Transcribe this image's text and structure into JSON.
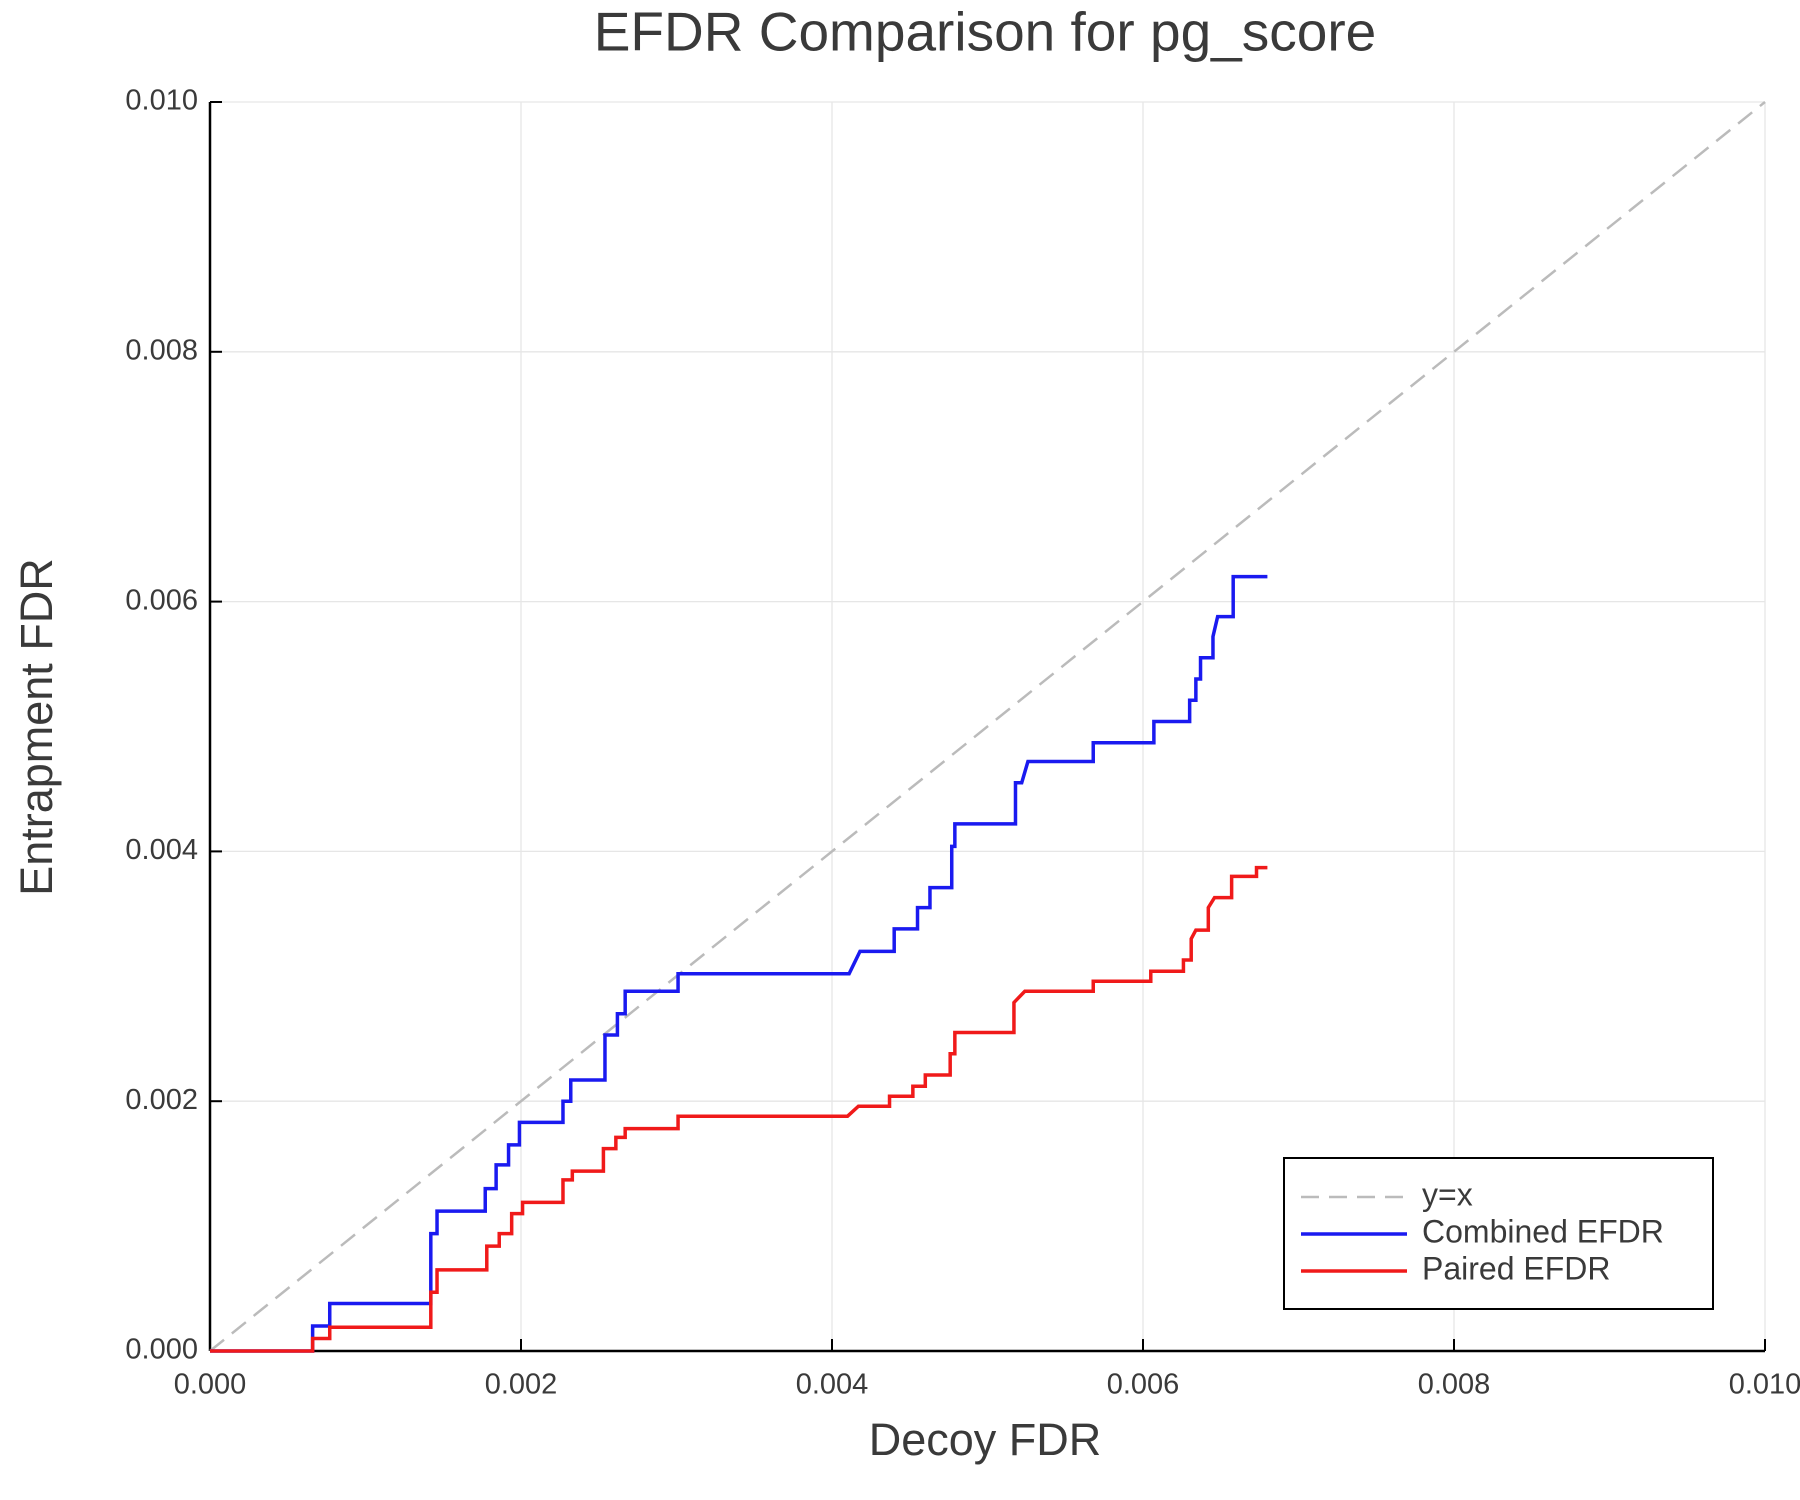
{
  "chart_data": {
    "type": "line",
    "title": "EFDR Comparison for pg_score",
    "x_label": "Decoy FDR",
    "y_label": "Entrapment FDR",
    "xlim": [
      0,
      0.01
    ],
    "ylim": [
      0,
      0.01
    ],
    "xticks": [
      {
        "value": 0,
        "label": "0.000"
      },
      {
        "value": 0.002,
        "label": "0.002"
      },
      {
        "value": 0.004,
        "label": "0.004"
      },
      {
        "value": 0.006,
        "label": "0.006"
      },
      {
        "value": 0.008,
        "label": "0.008"
      },
      {
        "value": 0.01,
        "label": "0.010"
      }
    ],
    "yticks": [
      {
        "value": 0,
        "label": "0.000"
      },
      {
        "value": 0.002,
        "label": "0.002"
      },
      {
        "value": 0.004,
        "label": "0.004"
      },
      {
        "value": 0.006,
        "label": "0.006"
      },
      {
        "value": 0.008,
        "label": "0.008"
      },
      {
        "value": 0.01,
        "label": "0.010"
      }
    ],
    "grid": true,
    "legend": "lower right",
    "series": [
      {
        "name": "y=x",
        "color": "#bbbbbb",
        "style": "dashed",
        "x": [
          0,
          0.01
        ],
        "values": [
          0,
          0.01
        ]
      },
      {
        "name": "Combined EFDR",
        "color": "#1a1af0",
        "style": "solid",
        "x": [
          0,
          0.00066,
          0.00066,
          0.00077,
          0.00077,
          0.00142,
          0.00142,
          0.00146,
          0.00146,
          0.00177,
          0.00177,
          0.00184,
          0.00184,
          0.00192,
          0.00192,
          0.00199,
          0.00199,
          0.00227,
          0.00227,
          0.00232,
          0.00232,
          0.00254,
          0.00254,
          0.00262,
          0.00262,
          0.00267,
          0.00267,
          0.00301,
          0.00301,
          0.00411,
          0.00418,
          0.0044,
          0.0044,
          0.00455,
          0.00455,
          0.00463,
          0.00463,
          0.00477,
          0.00477,
          0.00479,
          0.00479,
          0.00518,
          0.00518,
          0.00522,
          0.00526,
          0.00568,
          0.00568,
          0.00607,
          0.00607,
          0.0063,
          0.0063,
          0.00634,
          0.00634,
          0.00637,
          0.00637,
          0.00645,
          0.00645,
          0.00648,
          0.00658,
          0.00658,
          0.0068
        ],
        "values": [
          0,
          0,
          0.0002,
          0.0002,
          0.00038,
          0.00038,
          0.00094,
          0.00094,
          0.00112,
          0.00112,
          0.0013,
          0.0013,
          0.00149,
          0.00149,
          0.00165,
          0.00165,
          0.00183,
          0.00183,
          0.002,
          0.002,
          0.00217,
          0.00217,
          0.00253,
          0.00253,
          0.0027,
          0.0027,
          0.00288,
          0.00288,
          0.00302,
          0.00302,
          0.0032,
          0.0032,
          0.00338,
          0.00338,
          0.00355,
          0.00355,
          0.00371,
          0.00371,
          0.00404,
          0.00404,
          0.00422,
          0.00422,
          0.00455,
          0.00455,
          0.00472,
          0.00472,
          0.00487,
          0.00487,
          0.00504,
          0.00504,
          0.00521,
          0.00521,
          0.00538,
          0.00538,
          0.00555,
          0.00555,
          0.00572,
          0.00588,
          0.00588,
          0.0062,
          0.0062
        ]
      },
      {
        "name": "Paired EFDR",
        "color": "#f01a1a",
        "style": "solid",
        "x": [
          0,
          0.00066,
          0.00066,
          0.00077,
          0.00077,
          0.00142,
          0.00142,
          0.00146,
          0.00146,
          0.00178,
          0.00178,
          0.00186,
          0.00186,
          0.00194,
          0.00194,
          0.00201,
          0.00201,
          0.00227,
          0.00227,
          0.00233,
          0.00233,
          0.00253,
          0.00253,
          0.00261,
          0.00261,
          0.00267,
          0.00267,
          0.00301,
          0.00301,
          0.0041,
          0.00417,
          0.00437,
          0.00437,
          0.00452,
          0.00452,
          0.0046,
          0.0046,
          0.00476,
          0.00476,
          0.00479,
          0.00479,
          0.00517,
          0.00517,
          0.00524,
          0.00568,
          0.00568,
          0.00605,
          0.00605,
          0.00626,
          0.00626,
          0.00631,
          0.00631,
          0.00634,
          0.00642,
          0.00642,
          0.00646,
          0.00657,
          0.00657,
          0.00673,
          0.00673,
          0.0068
        ],
        "values": [
          0,
          0,
          0.0001,
          0.0001,
          0.00019,
          0.00019,
          0.00047,
          0.00047,
          0.00065,
          0.00065,
          0.00084,
          0.00084,
          0.00094,
          0.00094,
          0.0011,
          0.0011,
          0.00119,
          0.00119,
          0.00137,
          0.00137,
          0.00144,
          0.00144,
          0.00162,
          0.00162,
          0.00171,
          0.00171,
          0.00178,
          0.00178,
          0.00188,
          0.00188,
          0.00196,
          0.00196,
          0.00204,
          0.00204,
          0.00212,
          0.00212,
          0.00221,
          0.00221,
          0.00238,
          0.00238,
          0.00255,
          0.00255,
          0.00279,
          0.00288,
          0.00288,
          0.00296,
          0.00296,
          0.00304,
          0.00304,
          0.00313,
          0.00313,
          0.0033,
          0.00337,
          0.00337,
          0.00355,
          0.00363,
          0.00363,
          0.0038,
          0.0038,
          0.00387,
          0.00387
        ]
      }
    ]
  }
}
